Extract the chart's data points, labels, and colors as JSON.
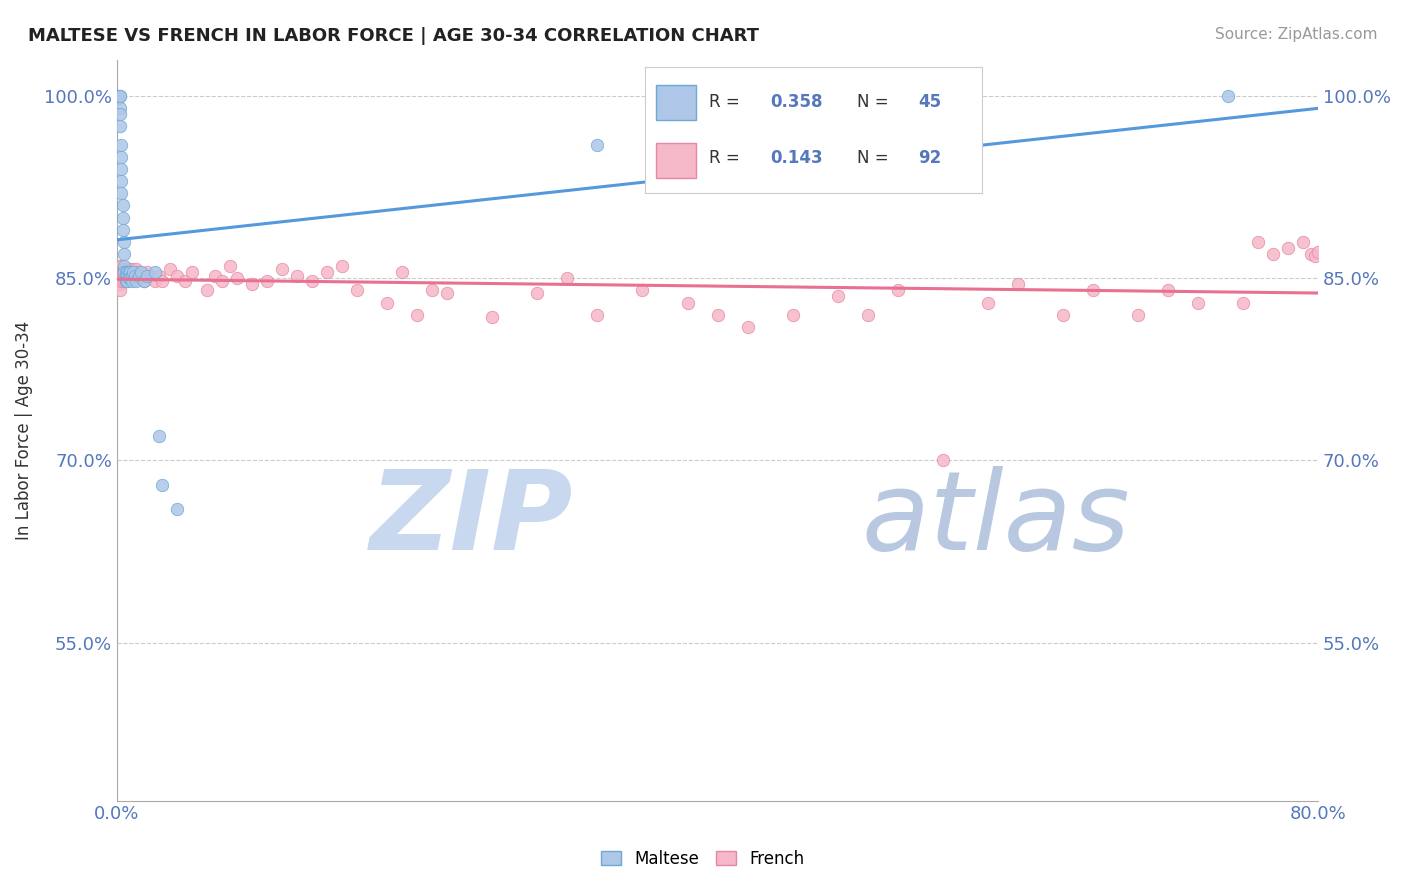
{
  "title": "MALTESE VS FRENCH IN LABOR FORCE | AGE 30-34 CORRELATION CHART",
  "source_text": "Source: ZipAtlas.com",
  "ylabel": "In Labor Force | Age 30-34",
  "xlim": [
    0.0,
    0.8
  ],
  "ylim": [
    0.42,
    1.03
  ],
  "ytick_values": [
    0.55,
    0.7,
    0.85,
    1.0
  ],
  "ytick_labels": [
    "55.0%",
    "70.0%",
    "85.0%",
    "100.0%"
  ],
  "xtick_values": [
    0.0,
    0.8
  ],
  "xtick_labels": [
    "0.0%",
    "80.0%"
  ],
  "r_maltese": "0.358",
  "n_maltese": "45",
  "r_french": "0.143",
  "n_french": "92",
  "maltese_fill": "#aec6e8",
  "maltese_edge": "#6aaad4",
  "french_fill": "#f5b8c8",
  "french_edge": "#e888a0",
  "maltese_line_color": "#5599dd",
  "french_line_color": "#e87090",
  "tick_color": "#5577bb",
  "title_color": "#222222",
  "source_color": "#999999",
  "watermark_zip_color": "#c8d8ee",
  "watermark_atlas_color": "#b8c8e0",
  "grid_color": "#cccccc",
  "legend_box_color": "#eeeeee",
  "background": "#ffffff",
  "maltese_x": [
    0.001,
    0.001,
    0.001,
    0.002,
    0.002,
    0.002,
    0.002,
    0.002,
    0.003,
    0.003,
    0.003,
    0.003,
    0.003,
    0.004,
    0.004,
    0.004,
    0.005,
    0.005,
    0.005,
    0.005,
    0.006,
    0.006,
    0.006,
    0.007,
    0.007,
    0.007,
    0.008,
    0.008,
    0.009,
    0.009,
    0.01,
    0.01,
    0.011,
    0.012,
    0.013,
    0.015,
    0.016,
    0.018,
    0.02,
    0.025,
    0.028,
    0.03,
    0.04,
    0.32,
    0.74
  ],
  "maltese_y": [
    1.0,
    1.0,
    0.998,
    1.0,
    1.0,
    0.99,
    0.985,
    0.975,
    0.96,
    0.95,
    0.94,
    0.93,
    0.92,
    0.91,
    0.9,
    0.89,
    0.88,
    0.87,
    0.86,
    0.855,
    0.855,
    0.85,
    0.848,
    0.855,
    0.852,
    0.848,
    0.855,
    0.85,
    0.855,
    0.85,
    0.852,
    0.848,
    0.855,
    0.852,
    0.848,
    0.852,
    0.855,
    0.848,
    0.852,
    0.855,
    0.72,
    0.68,
    0.66,
    0.96,
    1.0
  ],
  "french_x": [
    0.001,
    0.001,
    0.001,
    0.001,
    0.002,
    0.002,
    0.002,
    0.002,
    0.002,
    0.002,
    0.003,
    0.003,
    0.003,
    0.003,
    0.004,
    0.004,
    0.005,
    0.005,
    0.005,
    0.005,
    0.006,
    0.006,
    0.006,
    0.007,
    0.007,
    0.008,
    0.008,
    0.009,
    0.009,
    0.01,
    0.01,
    0.011,
    0.012,
    0.013,
    0.014,
    0.015,
    0.018,
    0.02,
    0.022,
    0.025,
    0.028,
    0.03,
    0.035,
    0.04,
    0.045,
    0.05,
    0.06,
    0.065,
    0.07,
    0.075,
    0.08,
    0.09,
    0.1,
    0.11,
    0.12,
    0.13,
    0.14,
    0.15,
    0.16,
    0.18,
    0.19,
    0.2,
    0.21,
    0.22,
    0.25,
    0.28,
    0.3,
    0.32,
    0.35,
    0.38,
    0.4,
    0.42,
    0.45,
    0.48,
    0.5,
    0.52,
    0.55,
    0.58,
    0.6,
    0.63,
    0.65,
    0.68,
    0.7,
    0.72,
    0.75,
    0.76,
    0.77,
    0.78,
    0.79,
    0.795,
    0.798,
    0.8
  ],
  "french_y": [
    0.855,
    0.852,
    0.848,
    0.845,
    0.86,
    0.855,
    0.852,
    0.848,
    0.845,
    0.84,
    0.86,
    0.855,
    0.85,
    0.848,
    0.858,
    0.852,
    0.858,
    0.855,
    0.85,
    0.848,
    0.855,
    0.852,
    0.848,
    0.858,
    0.852,
    0.855,
    0.85,
    0.858,
    0.852,
    0.858,
    0.852,
    0.855,
    0.852,
    0.858,
    0.855,
    0.85,
    0.848,
    0.855,
    0.852,
    0.848,
    0.852,
    0.848,
    0.858,
    0.852,
    0.848,
    0.855,
    0.84,
    0.852,
    0.848,
    0.86,
    0.85,
    0.845,
    0.848,
    0.858,
    0.852,
    0.848,
    0.855,
    0.86,
    0.84,
    0.83,
    0.855,
    0.82,
    0.84,
    0.838,
    0.818,
    0.838,
    0.85,
    0.82,
    0.84,
    0.83,
    0.82,
    0.81,
    0.82,
    0.835,
    0.82,
    0.84,
    0.7,
    0.83,
    0.845,
    0.82,
    0.84,
    0.82,
    0.84,
    0.83,
    0.83,
    0.88,
    0.87,
    0.875,
    0.88,
    0.87,
    0.868,
    0.872
  ]
}
